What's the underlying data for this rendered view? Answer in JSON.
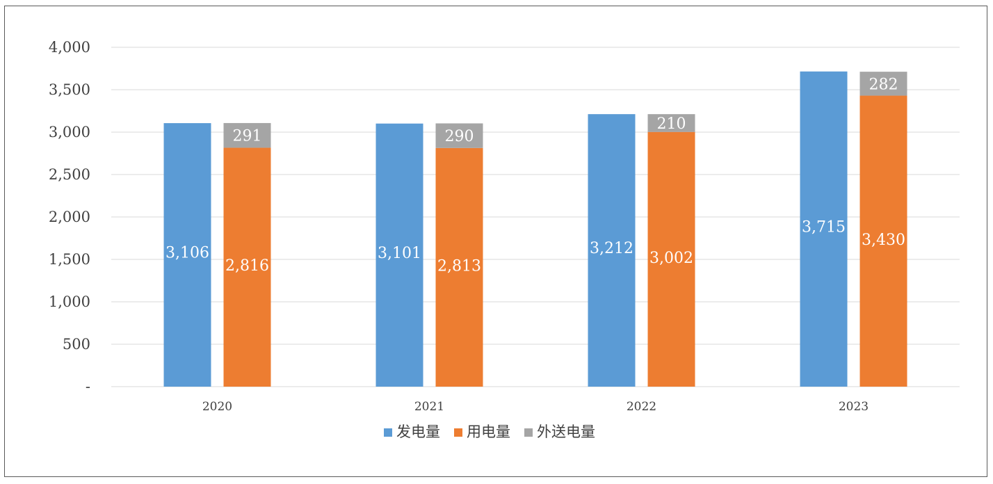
{
  "chart_data": {
    "type": "bar",
    "categories": [
      "2020",
      "2021",
      "2022",
      "2023"
    ],
    "series": [
      {
        "name": "发电量",
        "values": [
          3106,
          3101,
          3212,
          3715
        ],
        "color": "#5b9bd5",
        "labels": [
          "3,106",
          "3,101",
          "3,212",
          "3,715"
        ]
      },
      {
        "name": "用电量",
        "values": [
          2816,
          2813,
          3002,
          3430
        ],
        "color": "#ed7d31",
        "labels": [
          "2,816",
          "2,813",
          "3,002",
          "3,430"
        ]
      },
      {
        "name": "外送电量",
        "values": [
          291,
          290,
          210,
          282
        ],
        "color": "#a5a5a5",
        "labels": [
          "291",
          "290",
          "210",
          "282"
        ],
        "stacked_on": "用电量"
      }
    ],
    "ylim": [
      0,
      4000
    ],
    "yticks": [
      0,
      500,
      1000,
      1500,
      2000,
      2500,
      3000,
      3500,
      4000
    ],
    "ytick_labels": [
      "-",
      "500",
      "1,000",
      "1,500",
      "2,000",
      "2,500",
      "3,000",
      "3,500",
      "4,000"
    ],
    "grid": true,
    "legend_position": "bottom"
  }
}
